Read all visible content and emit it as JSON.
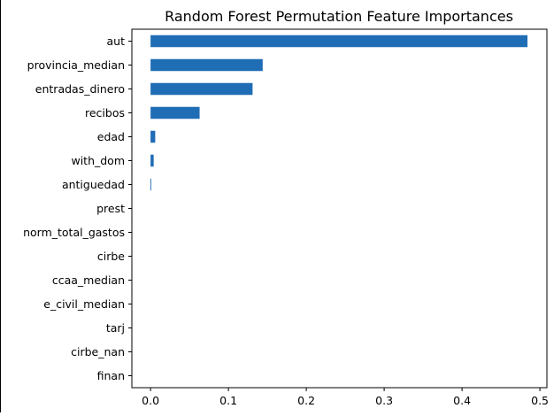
{
  "chart_data": {
    "type": "bar",
    "orientation": "horizontal",
    "title": "Random Forest Permutation Feature Importances",
    "xlabel": "",
    "ylabel": "",
    "categories": [
      "aut",
      "provincia_median",
      "entradas_dinero",
      "recibos",
      "edad",
      "with_dom",
      "antiguedad",
      "prest",
      "norm_total_gastos",
      "cirbe",
      "ccaa_median",
      "e_civil_median",
      "tarj",
      "cirbe_nan",
      "finan"
    ],
    "values": [
      0.484,
      0.144,
      0.131,
      0.063,
      0.006,
      0.004,
      0.001,
      0.0,
      0.0,
      0.0,
      0.0,
      0.0,
      0.0,
      0.0,
      0.0
    ],
    "xlim": [
      -0.024,
      0.509
    ],
    "xticks": [
      "0.0",
      "0.1",
      "0.2",
      "0.3",
      "0.4",
      "0.5"
    ],
    "grid": false,
    "legend": "none",
    "bar_color": "#1f6db5"
  }
}
